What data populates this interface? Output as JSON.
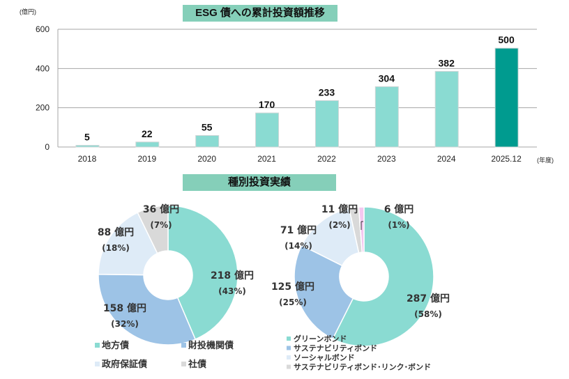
{
  "chart_data": [
    {
      "type": "bar",
      "title": "ESG 債への累計投資額推移",
      "ylabel": "(億円)",
      "xlabel": "(年度)",
      "categories": [
        "2018",
        "2019",
        "2020",
        "2021",
        "2022",
        "2023",
        "2024",
        "2025.12"
      ],
      "values": [
        5,
        22,
        55,
        170,
        233,
        304,
        382,
        500
      ],
      "ylim": [
        0,
        600
      ],
      "yticks": [
        0,
        200,
        400,
        600
      ],
      "grid": true,
      "colors": {
        "bar": "#8adbd2",
        "highlight": "#009b8f"
      }
    },
    {
      "type": "pie",
      "title": "種別投資実績",
      "donut": true,
      "slices": [
        {
          "name": "地方債",
          "value": 218,
          "label": "218 億円",
          "pct": "(43%)",
          "color": "#8adbd2"
        },
        {
          "name": "財投機関債",
          "value": 158,
          "label": "158 億円",
          "pct": "(32%)",
          "color": "#9dc3e6"
        },
        {
          "name": "政府保証債",
          "value": 88,
          "label": "88 億円",
          "pct": "(18%)",
          "color": "#deebf7"
        },
        {
          "name": "社債",
          "value": 36,
          "label": "36 億円",
          "pct": "(7%)",
          "color": "#d9d9d9"
        }
      ],
      "legend_placement": "bottom"
    },
    {
      "type": "pie",
      "donut": true,
      "slices": [
        {
          "name": "グリーンボンド",
          "value": 287,
          "label": "287 億円",
          "pct": "(58%)",
          "color": "#8adbd2"
        },
        {
          "name": "サステナビリティボンド",
          "value": 125,
          "label": "125 億円",
          "pct": "(25%)",
          "color": "#9dc3e6"
        },
        {
          "name": "ソーシャルボンド",
          "value": 71,
          "label": "71 億円",
          "pct": "(14%)",
          "color": "#deebf7"
        },
        {
          "name": "サステナビリティボンド･リンク･ボンド",
          "value": 11,
          "label": "11 億円",
          "pct": "(2%)",
          "color": "#d9d9d9"
        },
        {
          "value": 6,
          "label": "6 億円",
          "pct": "(1%)",
          "color": "#f4c7f0"
        }
      ],
      "legend_placement": "bottom-left"
    }
  ]
}
